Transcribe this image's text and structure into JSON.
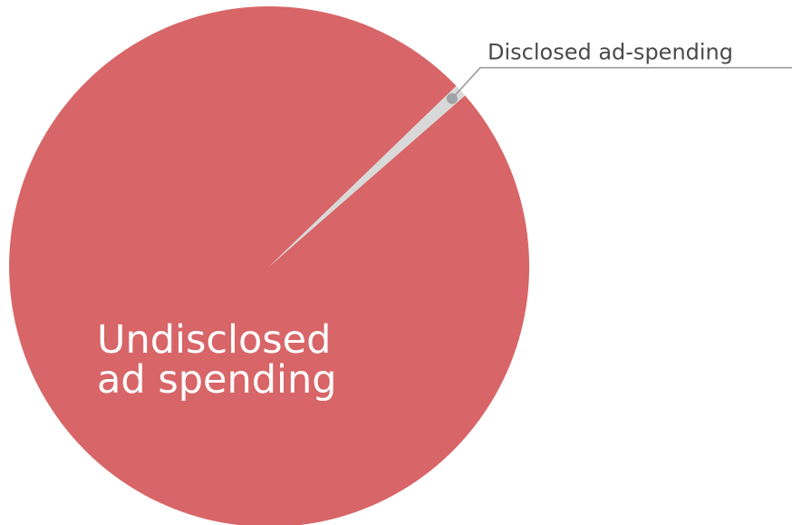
{
  "chart_data": {
    "type": "pie",
    "title": "",
    "slices": [
      {
        "label": "Undisclosed ad spending",
        "label_lines": [
          "Undisclosed",
          "ad spending"
        ],
        "value": 99.2,
        "color": "#d86567"
      },
      {
        "label": "Disclosed ad-spending",
        "value": 0.8,
        "color": "#d9d9d9"
      }
    ],
    "callout": {
      "text": "Disclosed ad-spending",
      "line_color": "#9a9a9a",
      "dot_color": "#9fa3a6"
    },
    "legend": "none"
  }
}
